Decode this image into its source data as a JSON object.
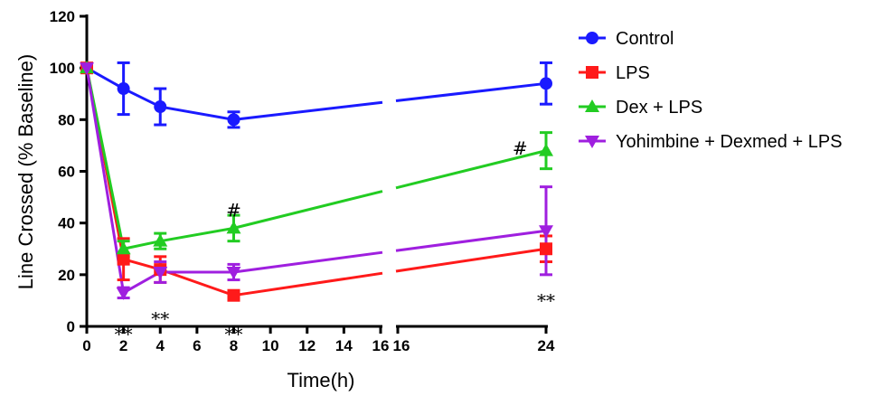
{
  "chart_data": {
    "type": "line",
    "xlabel": "Time(h)",
    "ylabel": "Line Crossed (% Baseline)",
    "ylim": [
      0,
      120
    ],
    "yticks": [
      "0",
      "20",
      "40",
      "60",
      "80",
      "100",
      "120"
    ],
    "xticks_left": [
      "0",
      "2",
      "4",
      "6",
      "8",
      "10",
      "12",
      "14",
      "16"
    ],
    "xticks_right": [
      "16",
      "24"
    ],
    "x_axis_break": [
      16,
      16
    ],
    "legend_position": "top-right",
    "series": [
      {
        "name": "Control",
        "color": "#1a1aff",
        "marker": "circle",
        "x": [
          0,
          2,
          4,
          8,
          24
        ],
        "y": [
          100,
          92,
          85,
          80,
          94
        ],
        "err": [
          0,
          10,
          7,
          3,
          8
        ]
      },
      {
        "name": "LPS",
        "color": "#ff1a1a",
        "marker": "square",
        "x": [
          0,
          2,
          4,
          8,
          24
        ],
        "y": [
          100,
          26,
          22,
          12,
          30
        ],
        "err": [
          0,
          8,
          5,
          1,
          5
        ]
      },
      {
        "name": "Dex + LPS",
        "color": "#22cc22",
        "marker": "triangle-up",
        "x": [
          0,
          2,
          4,
          8,
          24
        ],
        "y": [
          100,
          30,
          33,
          38,
          68
        ],
        "err": [
          0,
          3,
          3,
          5,
          7
        ]
      },
      {
        "name": "Yohimbine + Dexmed + LPS",
        "color": "#9f1fdf",
        "marker": "triangle-down",
        "x": [
          0,
          2,
          4,
          8,
          24
        ],
        "y": [
          100,
          13,
          21,
          21,
          37
        ],
        "err": [
          0,
          2,
          4,
          3,
          17
        ]
      }
    ],
    "annotations": [
      {
        "text": "**",
        "x": 2,
        "y": -3
      },
      {
        "text": "**",
        "x": 4,
        "y": 3
      },
      {
        "text": "**",
        "x": 8,
        "y": -3
      },
      {
        "text": "#",
        "x": 8,
        "y": 45
      },
      {
        "text": "#",
        "x": 22.6,
        "y": 69
      },
      {
        "text": "**",
        "x": 24,
        "y": 10
      }
    ]
  }
}
